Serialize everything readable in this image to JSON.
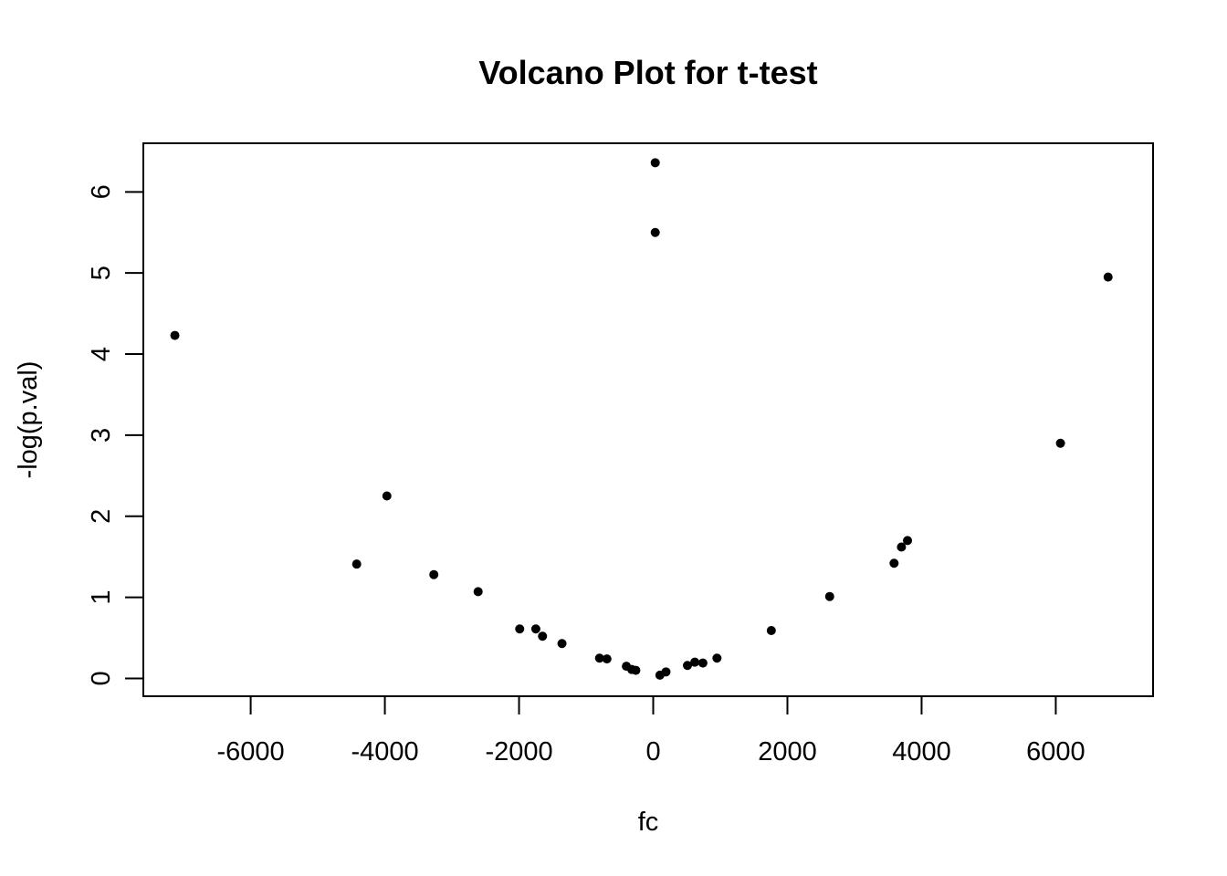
{
  "chart_data": {
    "type": "scatter",
    "title": "Volcano Plot for t-test",
    "xlabel": "fc",
    "ylabel": "-log(p.val)",
    "xlim": [
      -7600,
      7450
    ],
    "ylim": [
      -0.22,
      6.6
    ],
    "xticks": [
      -6000,
      -4000,
      -2000,
      0,
      2000,
      4000,
      6000
    ],
    "yticks": [
      0,
      1,
      2,
      3,
      4,
      5,
      6
    ],
    "grid": false,
    "legend": "none",
    "point_color": "#000000",
    "points": [
      {
        "x": -7130,
        "y": 4.23
      },
      {
        "x": -4420,
        "y": 1.41
      },
      {
        "x": -3970,
        "y": 2.25
      },
      {
        "x": -3270,
        "y": 1.28
      },
      {
        "x": -2610,
        "y": 1.07
      },
      {
        "x": -1990,
        "y": 0.61
      },
      {
        "x": -1750,
        "y": 0.61
      },
      {
        "x": -1650,
        "y": 0.52
      },
      {
        "x": -1360,
        "y": 0.43
      },
      {
        "x": -800,
        "y": 0.25
      },
      {
        "x": -690,
        "y": 0.24
      },
      {
        "x": -400,
        "y": 0.15
      },
      {
        "x": -320,
        "y": 0.11
      },
      {
        "x": -260,
        "y": 0.1
      },
      {
        "x": 30,
        "y": 6.36
      },
      {
        "x": 30,
        "y": 5.5
      },
      {
        "x": 100,
        "y": 0.04
      },
      {
        "x": 190,
        "y": 0.08
      },
      {
        "x": 510,
        "y": 0.16
      },
      {
        "x": 620,
        "y": 0.2
      },
      {
        "x": 740,
        "y": 0.19
      },
      {
        "x": 950,
        "y": 0.25
      },
      {
        "x": 1760,
        "y": 0.59
      },
      {
        "x": 2630,
        "y": 1.01
      },
      {
        "x": 3590,
        "y": 1.42
      },
      {
        "x": 3700,
        "y": 1.62
      },
      {
        "x": 3790,
        "y": 1.7
      },
      {
        "x": 6070,
        "y": 2.9
      },
      {
        "x": 6780,
        "y": 4.95
      }
    ]
  }
}
